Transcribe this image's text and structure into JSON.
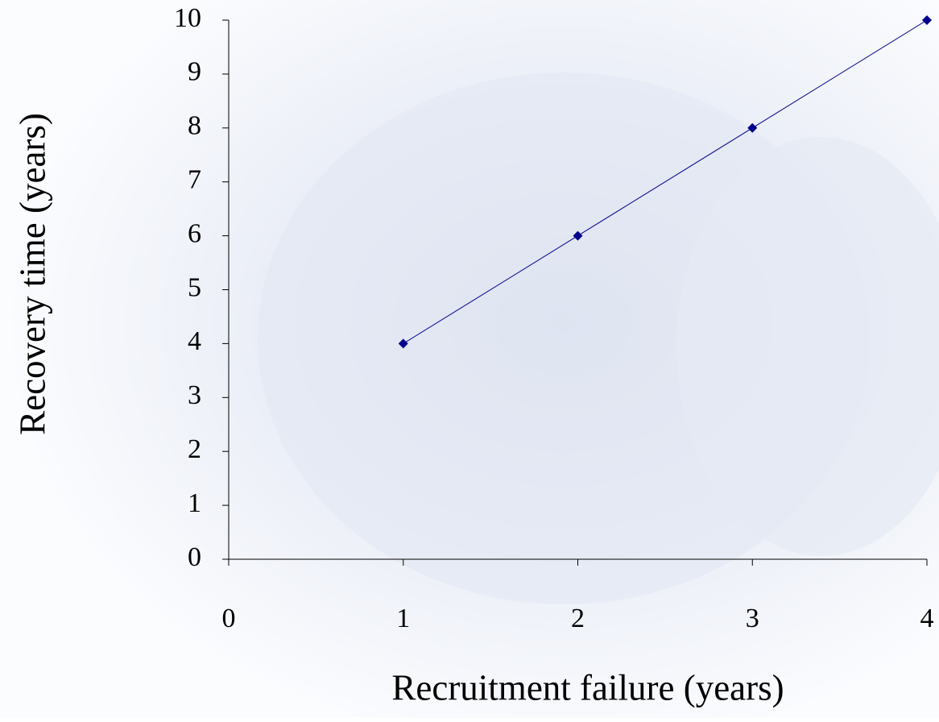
{
  "chart_data": {
    "type": "line",
    "x_label": "Recruitment failure (years)",
    "y_label": "Recovery time (years)",
    "x": [
      1,
      2,
      3,
      4
    ],
    "series": [
      {
        "name": null,
        "color": "#00008b",
        "values": [
          4,
          6,
          8,
          10
        ]
      }
    ],
    "xlim": [
      0,
      4
    ],
    "xticks": [
      0,
      1,
      2,
      3,
      4
    ],
    "ylim": [
      0,
      10
    ],
    "yticks": [
      0,
      1,
      2,
      3,
      4,
      5,
      6,
      7,
      8,
      9,
      10
    ],
    "grid": false
  }
}
